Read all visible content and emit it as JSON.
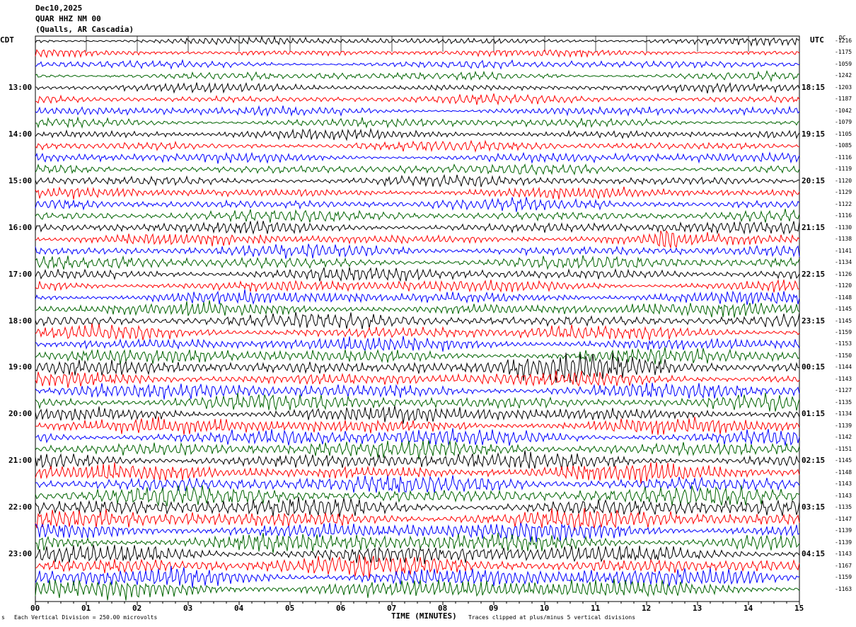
{
  "header": {
    "date": "Dec10,2025",
    "station": "QUAR HHZ NM 00",
    "location": "(Qualls, AR Cascadia)"
  },
  "left_tz": "CDT",
  "right_tz": "UTC",
  "dc_header": "DC",
  "footer": {
    "scale_text": "Each Vertical Division =  250.00 microvolts",
    "clip_text": "Traces clipped at plus/minus 5 vertical divisions",
    "mark": "s"
  },
  "chart_data": {
    "type": "line",
    "title": "QUAR HHZ NM 00",
    "xlabel": "TIME (MINUTES)",
    "ylabel": "",
    "xlim": [
      0,
      15
    ],
    "x_ticks": [
      "00",
      "01",
      "02",
      "03",
      "04",
      "05",
      "06",
      "07",
      "08",
      "09",
      "10",
      "11",
      "12",
      "13",
      "14",
      "15"
    ],
    "left_hour_labels": [
      "13:00",
      "14:00",
      "15:00",
      "16:00",
      "17:00",
      "18:00",
      "19:00",
      "20:00",
      "21:00",
      "22:00",
      "23:00"
    ],
    "right_hour_labels": [
      "18:15",
      "19:15",
      "20:15",
      "21:15",
      "22:15",
      "23:15",
      "00:15",
      "01:15",
      "02:15",
      "03:15",
      "04:15"
    ],
    "trace_count": 48,
    "trace_colors": [
      "#000000",
      "#ff0000",
      "#0000ff",
      "#006400"
    ],
    "dc_offsets": [
      -1216,
      -1175,
      -1059,
      -1242,
      -1203,
      -1187,
      -1042,
      -1079,
      -1105,
      -1085,
      -1116,
      -1119,
      -1120,
      -1129,
      -1122,
      -1116,
      -1130,
      -1138,
      -1141,
      -1134,
      -1126,
      -1120,
      -1148,
      -1145,
      -1145,
      -1159,
      -1153,
      -1150,
      -1144,
      -1143,
      -1127,
      -1135,
      -1134,
      -1139,
      -1142,
      -1151,
      -1145,
      -1148,
      -1143,
      -1143,
      -1135,
      -1147,
      -1139,
      -1139,
      -1143,
      -1167,
      -1159,
      -1163
    ]
  }
}
